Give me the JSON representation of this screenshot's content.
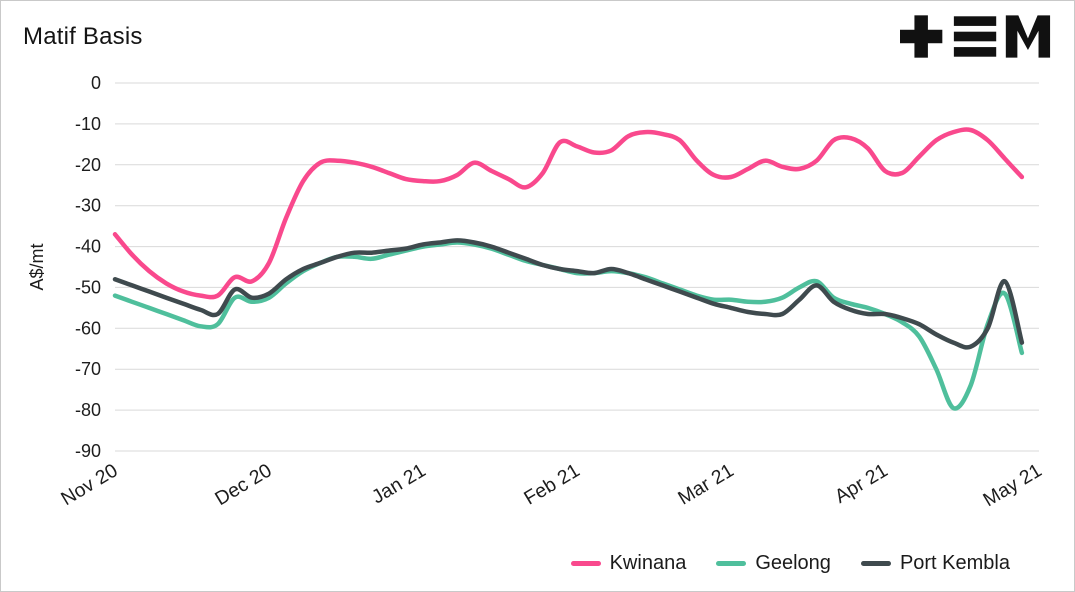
{
  "header": {
    "title": "Matif Basis"
  },
  "colors": {
    "grid": "#d9d9d9",
    "axis_text": "#1d1d1d",
    "background": "#ffffff",
    "border": "#c9c9c9",
    "logo": "#111111"
  },
  "chart_data": {
    "type": "line",
    "title": "Matif Basis",
    "xlabel": "",
    "ylabel": "A$/mt",
    "ylim": [
      -90,
      0
    ],
    "y_ticks": [
      0,
      -10,
      -20,
      -30,
      -40,
      -50,
      -60,
      -70,
      -80,
      -90
    ],
    "x_tick_labels": [
      "Nov 20",
      "Dec 20",
      "Jan 21",
      "Feb 21",
      "Mar 21",
      "Apr 21",
      "May 21"
    ],
    "x_tick_positions": [
      0,
      9,
      18,
      27,
      36,
      45,
      54
    ],
    "x_domain": [
      0,
      54
    ],
    "grid": "horizontal",
    "legend_position": "bottom-right",
    "series": [
      {
        "name": "Kwinana",
        "color": "#F9498D",
        "values": [
          -37,
          -42,
          -46,
          -49,
          -51,
          -52,
          -52,
          -47.5,
          -48.5,
          -44,
          -33,
          -24,
          -19.5,
          -19,
          -19.5,
          -20.5,
          -22,
          -23.5,
          -24,
          -24,
          -22.5,
          -19.5,
          -21.5,
          -23.5,
          -25.5,
          -22,
          -14.5,
          -15.5,
          -17,
          -16.5,
          -13,
          -12,
          -12.5,
          -14,
          -19,
          -22.5,
          -23,
          -21,
          -19,
          -20.5,
          -21,
          -19,
          -14,
          -13.5,
          -16,
          -21.5,
          -22,
          -18,
          -14,
          -12,
          -11.5,
          -14,
          -18.5,
          -23
        ]
      },
      {
        "name": "Geelong",
        "color": "#4FBF9C",
        "values": [
          -52,
          -53.5,
          -55,
          -56.5,
          -58,
          -59.5,
          -59,
          -52.5,
          -53.5,
          -52.5,
          -49,
          -46,
          -44,
          -42.5,
          -42.5,
          -43,
          -42,
          -41,
          -40,
          -39.5,
          -39,
          -39.5,
          -40.5,
          -42,
          -43.5,
          -44.5,
          -45.5,
          -46.5,
          -46.5,
          -46,
          -46.5,
          -47.5,
          -49,
          -50.5,
          -52,
          -53,
          -53,
          -53.5,
          -53.5,
          -52.5,
          -50,
          -48.5,
          -52.5,
          -54,
          -55,
          -56.5,
          -58.5,
          -62,
          -70,
          -79.5,
          -74,
          -59,
          -51.5,
          -66
        ]
      },
      {
        "name": "Port Kembla",
        "color": "#3F4A4E",
        "values": [
          -48,
          -49.5,
          -51,
          -52.5,
          -54,
          -55.5,
          -56.5,
          -50.5,
          -52.5,
          -51.5,
          -48,
          -45.5,
          -44,
          -42.5,
          -41.5,
          -41.5,
          -41,
          -40.5,
          -39.5,
          -39,
          -38.5,
          -39,
          -40,
          -41.5,
          -43,
          -44.5,
          -45.5,
          -46,
          -46.5,
          -45.5,
          -46.5,
          -48,
          -49.5,
          -51,
          -52.5,
          -54,
          -55,
          -56,
          -56.5,
          -56.5,
          -53,
          -49.5,
          -53.5,
          -55.5,
          -56.5,
          -56.5,
          -57.5,
          -59,
          -61.5,
          -63.5,
          -64.5,
          -60,
          -48.5,
          -63.5
        ]
      }
    ]
  }
}
